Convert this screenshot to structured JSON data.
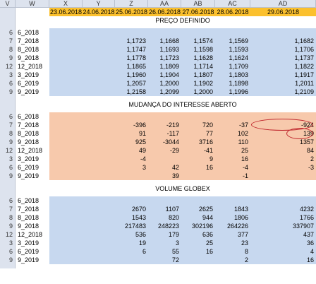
{
  "columns": [
    "V",
    "W",
    "X",
    "Y",
    "Z",
    "AA",
    "AB",
    "AC",
    "AD"
  ],
  "dates": [
    "23.06.2018",
    "24.06.2018",
    "25.06.2018",
    "26.06.2018",
    "27.06.2018",
    "28.06.2018",
    "29.06.2018"
  ],
  "sections": [
    {
      "title": "PREÇO DEFINIDO",
      "fill": "#c7d8ef",
      "rows": [
        {
          "num": "6",
          "label": "6_2018",
          "values": [
            "",
            "",
            "",
            "",
            "",
            "",
            ""
          ]
        },
        {
          "num": "7",
          "label": "7_2018",
          "values": [
            "",
            "",
            "1,1723",
            "1,1668",
            "1,1574",
            "1,1569",
            "1,1682"
          ]
        },
        {
          "num": "8",
          "label": "8_2018",
          "values": [
            "",
            "",
            "1,1747",
            "1,1693",
            "1,1598",
            "1,1593",
            "1,1706"
          ]
        },
        {
          "num": "9",
          "label": "9_2018",
          "values": [
            "",
            "",
            "1,1778",
            "1,1723",
            "1,1628",
            "1,1624",
            "1,1737"
          ]
        },
        {
          "num": "12",
          "label": "12_2018",
          "values": [
            "",
            "",
            "1,1865",
            "1,1809",
            "1,1714",
            "1,1709",
            "1,1822"
          ]
        },
        {
          "num": "3",
          "label": "3_2019",
          "values": [
            "",
            "",
            "1,1960",
            "1,1904",
            "1,1807",
            "1,1803",
            "1,1917"
          ]
        },
        {
          "num": "6",
          "label": "6_2019",
          "values": [
            "",
            "",
            "1,2057",
            "1,2000",
            "1,1902",
            "1,1898",
            "1,2011"
          ]
        },
        {
          "num": "9",
          "label": "9_2019",
          "values": [
            "",
            "",
            "1,2158",
            "1,2099",
            "1,2000",
            "1,1996",
            "1,2109"
          ]
        }
      ]
    },
    {
      "title": "MUDANÇA DO INTERESSE ABERTO",
      "fill": "#f7c9ac",
      "rows": [
        {
          "num": "6",
          "label": "6_2018",
          "values": [
            "",
            "",
            "",
            "",
            "",
            "",
            ""
          ]
        },
        {
          "num": "7",
          "label": "7_2018",
          "values": [
            "",
            "",
            "-396",
            "-219",
            "720",
            "-37",
            "-924"
          ]
        },
        {
          "num": "8",
          "label": "8_2018",
          "values": [
            "",
            "",
            "91",
            "-117",
            "77",
            "102",
            "139"
          ]
        },
        {
          "num": "9",
          "label": "9_2018",
          "values": [
            "",
            "",
            "925",
            "-3044",
            "3716",
            "110",
            "1357"
          ]
        },
        {
          "num": "12",
          "label": "12_2018",
          "values": [
            "",
            "",
            "49",
            "-29",
            "-41",
            "25",
            "84"
          ]
        },
        {
          "num": "3",
          "label": "3_2019",
          "values": [
            "",
            "",
            "-4",
            "",
            "9",
            "16",
            "2"
          ]
        },
        {
          "num": "6",
          "label": "6_2019",
          "values": [
            "",
            "",
            "3",
            "42",
            "16",
            "-4",
            "-3"
          ]
        },
        {
          "num": "9",
          "label": "9_2019",
          "values": [
            "",
            "",
            "",
            "39",
            "",
            "-1",
            ""
          ]
        }
      ]
    },
    {
      "title": "VOLUME GLOBEX",
      "fill": "#c7d8ef",
      "rows": [
        {
          "num": "6",
          "label": "6_2018",
          "values": [
            "",
            "",
            "",
            "",
            "",
            "",
            ""
          ]
        },
        {
          "num": "7",
          "label": "7_2018",
          "values": [
            "",
            "",
            "2670",
            "1107",
            "2625",
            "1843",
            "4232"
          ]
        },
        {
          "num": "8",
          "label": "8_2018",
          "values": [
            "",
            "",
            "1543",
            "820",
            "944",
            "1806",
            "1766"
          ]
        },
        {
          "num": "9",
          "label": "9_2018",
          "values": [
            "",
            "",
            "217483",
            "248223",
            "302196",
            "264226",
            "337907"
          ]
        },
        {
          "num": "12",
          "label": "12_2018",
          "values": [
            "",
            "",
            "536",
            "179",
            "636",
            "377",
            "437"
          ]
        },
        {
          "num": "3",
          "label": "3_2019",
          "values": [
            "",
            "",
            "19",
            "3",
            "25",
            "23",
            "36"
          ]
        },
        {
          "num": "6",
          "label": "6_2019",
          "values": [
            "",
            "",
            "6",
            "55",
            "16",
            "8",
            "4"
          ]
        },
        {
          "num": "9",
          "label": "9_2019",
          "values": [
            "",
            "",
            "",
            "72",
            "",
            "2",
            "16"
          ]
        }
      ]
    }
  ],
  "colors": {
    "date_header": "#fbc02d",
    "header_bg": "#dde3ee",
    "highlight_circle": "#c0272d"
  }
}
